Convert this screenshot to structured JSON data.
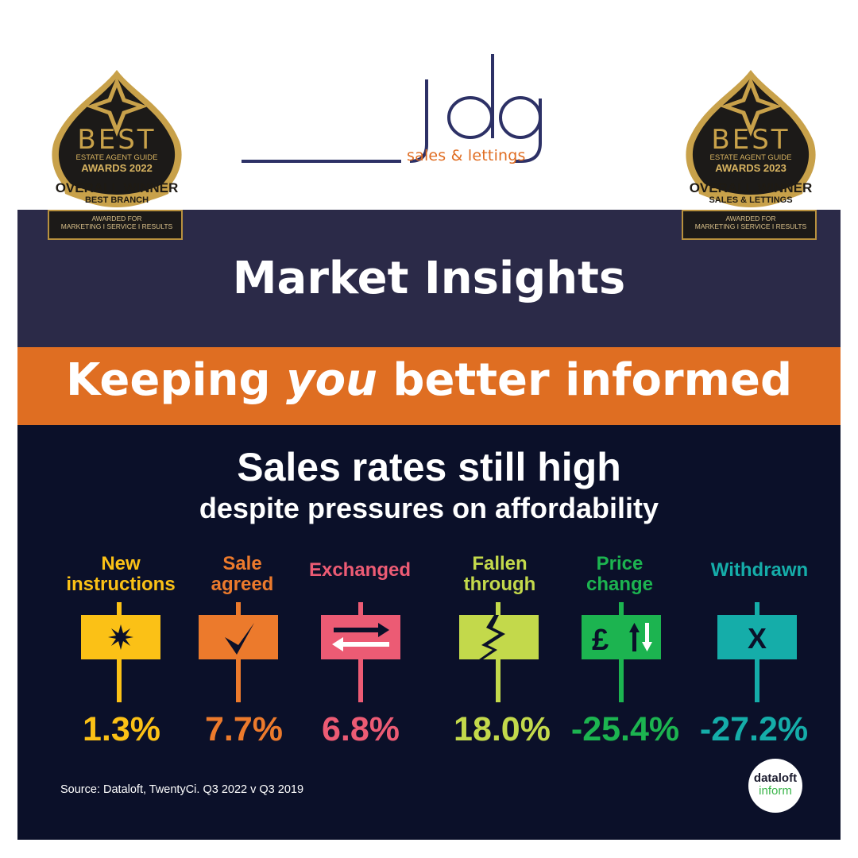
{
  "brand": {
    "name": "jdg",
    "tagline": "sales & lettings"
  },
  "badges": [
    {
      "best": "BEST",
      "guide": "ESTATE AGENT GUIDE",
      "awards": "AWARDS 2022",
      "winner": "OVERALL WINNER",
      "category": "BEST BRANCH",
      "plaque_line1": "AWARDED FOR",
      "plaque_line2": "MARKETING I SERVICE I RESULTS"
    },
    {
      "best": "BEST",
      "guide": "ESTATE AGENT GUIDE",
      "awards": "AWARDS 2023",
      "winner": "OVERALL WINNER",
      "category": "SALES & LETTINGS",
      "plaque_line1": "AWARDED FOR",
      "plaque_line2": "MARKETING I SERVICE I RESULTS"
    }
  ],
  "header": {
    "title": "Market Insights",
    "tagline_before": "Keeping ",
    "tagline_emphasis": "you",
    "tagline_after": " better informed"
  },
  "headline": "Sales rates still high",
  "subheadline": "despite pressures on affordability",
  "stats": [
    {
      "label_line1": "New",
      "label_line2": "instructions",
      "value": "1.3%",
      "color": "#fbc116",
      "icon": "star-burst-icon"
    },
    {
      "label_line1": "Sale",
      "label_line2": "agreed",
      "value": "7.7%",
      "color": "#ec7a2c",
      "icon": "checkmark-icon"
    },
    {
      "label_line1": "Exchanged",
      "label_line2": "",
      "value": "6.8%",
      "color": "#ec5b74",
      "icon": "exchange-arrows-icon"
    },
    {
      "label_line1": "Fallen",
      "label_line2": "through",
      "value": "18.0%",
      "color": "#c3d94b",
      "icon": "crack-icon"
    },
    {
      "label_line1": "Price",
      "label_line2": "change",
      "value": "-25.4%",
      "color": "#1cb450",
      "icon": "pound-up-down-icon",
      "icon_text": "£"
    },
    {
      "label_line1": "Withdrawn",
      "label_line2": "",
      "value": "-27.2%",
      "color": "#15ada9",
      "icon": "x-icon",
      "icon_text": "X"
    }
  ],
  "source": "Source: Dataloft, TwentyCi. Q3 2022 v Q3 2019",
  "dataloft": {
    "line1": "dataloft",
    "line2": "inform"
  }
}
